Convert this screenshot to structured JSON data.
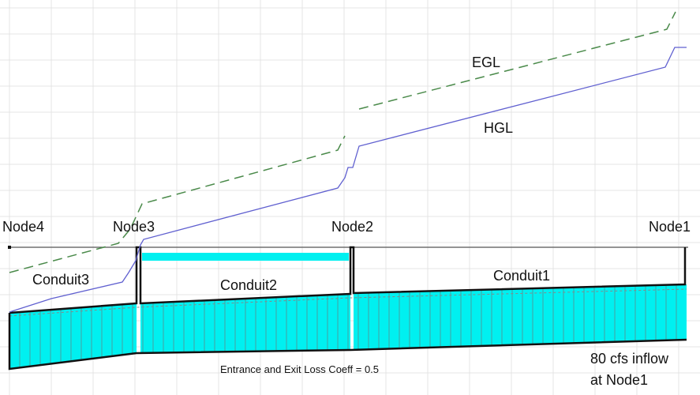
{
  "nodes": [
    "Node4",
    "Node3",
    "Node2",
    "Node1"
  ],
  "conduits": [
    "Conduit3",
    "Conduit2",
    "Conduit1"
  ],
  "lines": {
    "egl": "EGL",
    "hgl": "HGL"
  },
  "note": "Entrance and Exit Loss Coeff = 0.5",
  "inflow": [
    "80 cfs inflow",
    "at Node1"
  ],
  "colors": {
    "water": "#00f0f0",
    "hgl": "#6060d0",
    "egl": "#4a8a4a",
    "pipe": "#111111",
    "grid": "#e4e4e4"
  }
}
